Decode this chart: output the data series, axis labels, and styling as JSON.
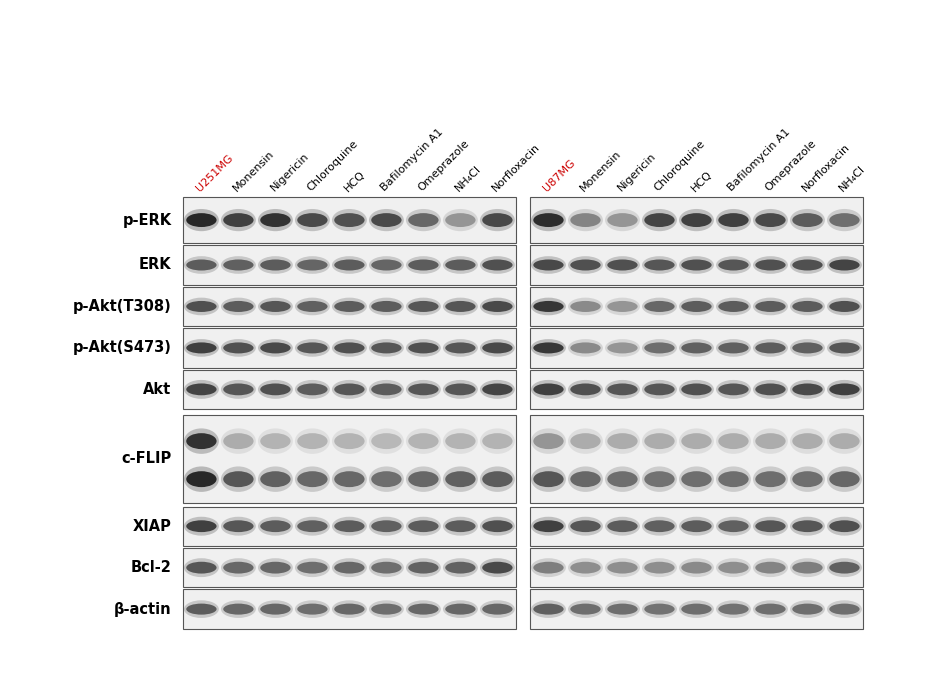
{
  "fig_width": 9.38,
  "fig_height": 6.91,
  "background_color": "#ffffff",
  "left_labels": [
    "p-ERK",
    "ERK",
    "p-Akt(T308)",
    "p-Akt(S473)",
    "Akt",
    "c-FLIP",
    "XIAP",
    "Bcl-2",
    "β-actin"
  ],
  "col_labels_left": [
    "U251MG",
    "Monensin",
    "Nigericin",
    "Chloroquine",
    "HCQ",
    "Bafilomycin A1",
    "Omeprazole",
    "NH₄Cl",
    "Norfloxacin"
  ],
  "col_labels_right": [
    "U87MG",
    "Monensin",
    "Nigericin",
    "Chloroquine",
    "HCQ",
    "Bafilomycin A1",
    "Omeprazole",
    "Norfloxacin",
    "NH₄Cl"
  ],
  "col_label_colors_left": [
    "#cc0000",
    "#000000",
    "#000000",
    "#000000",
    "#000000",
    "#000000",
    "#000000",
    "#000000",
    "#000000"
  ],
  "col_label_colors_right": [
    "#cc0000",
    "#000000",
    "#000000",
    "#000000",
    "#000000",
    "#000000",
    "#000000",
    "#000000",
    "#000000"
  ],
  "panel_bg": "#f0f0f0",
  "band_color": "#222222",
  "label_fontsize": 10.5,
  "col_label_fontsize": 8.0
}
